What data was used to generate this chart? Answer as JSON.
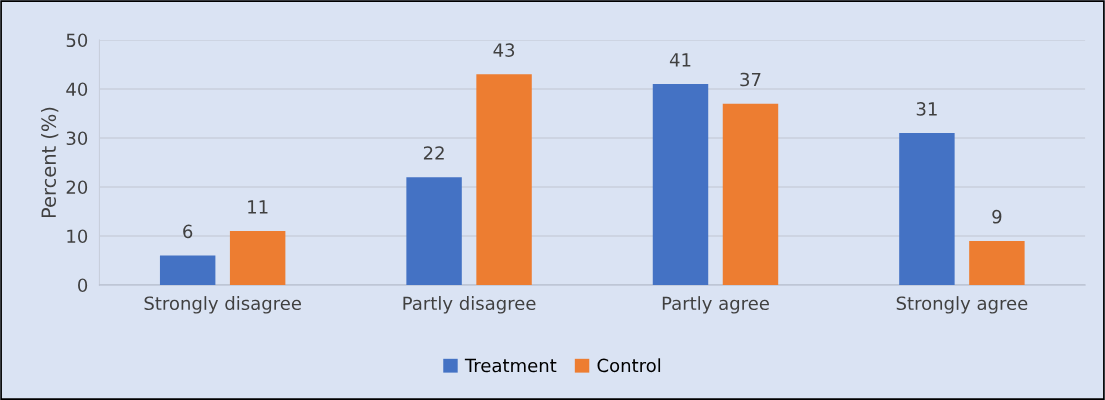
{
  "chart_data": {
    "type": "bar",
    "ylabel": "Percent (%)",
    "categories": [
      "Strongly disagree",
      "Partly disagree",
      "Partly agree",
      "Strongly agree"
    ],
    "series": [
      {
        "name": "Treatment",
        "color": "#4472c4",
        "values": [
          6,
          22,
          41,
          31
        ]
      },
      {
        "name": "Control",
        "color": "#ed7d31",
        "values": [
          11,
          43,
          37,
          9
        ]
      }
    ],
    "ylim": [
      0,
      50
    ],
    "yticks": [
      0,
      10,
      20,
      30,
      40,
      50
    ],
    "grid": "y",
    "legend": "bottom",
    "data_labels": true
  }
}
